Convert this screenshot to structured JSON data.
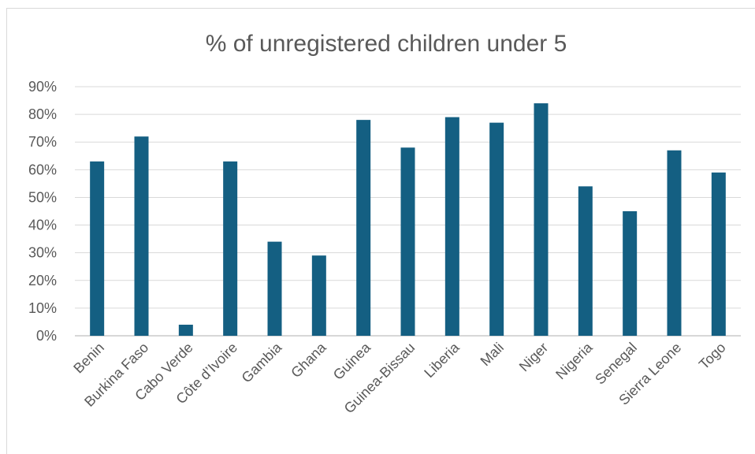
{
  "chart_data": {
    "type": "bar",
    "title": "% of unregistered children under 5",
    "xlabel": "",
    "ylabel": "",
    "categories": [
      "Benin",
      "Burkina Faso",
      "Cabo Verde",
      "Côte d’Ivoire",
      "Gambia",
      "Ghana",
      "Guinea",
      "Guinea-Bissau",
      "Liberia",
      "Mali",
      "Niger",
      "Nigeria",
      "Senegal",
      "Sierra Leone",
      "Togo"
    ],
    "values": [
      63,
      72,
      4,
      63,
      34,
      29,
      78,
      68,
      79,
      77,
      84,
      54,
      45,
      67,
      59
    ],
    "ylim": [
      0,
      90
    ],
    "yticks": [
      "0%",
      "10%",
      "20%",
      "30%",
      "40%",
      "50%",
      "60%",
      "70%",
      "80%",
      "90%"
    ],
    "grid": true,
    "legend": "none",
    "bar_color": "#145f82"
  }
}
